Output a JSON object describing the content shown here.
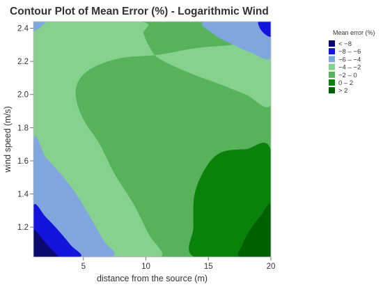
{
  "chart_data": {
    "type": "contour",
    "title": "Contour Plot of Mean Error (%) - Logarithmic Wind",
    "xlabel": "distance from the source (m)",
    "ylabel": "wind speed (m/s)",
    "xlim": [
      1,
      20
    ],
    "ylim": [
      1.02,
      2.44
    ],
    "x_ticks": [
      5,
      10,
      15,
      20
    ],
    "x_tick_labels": [
      "5",
      "10",
      "15",
      "20"
    ],
    "y_ticks": [
      1.2,
      1.4,
      1.6,
      1.8,
      2.0,
      2.2,
      2.4
    ],
    "y_tick_labels": [
      "1.2",
      "1.4",
      "1.6",
      "1.8",
      "2.0",
      "2.2",
      "2.4"
    ],
    "legend": {
      "title": "Mean error (%)",
      "placement": "right",
      "entries": [
        {
          "label": "< −8",
          "color": "#0a0a6e"
        },
        {
          "label": "−8 – −6",
          "color": "#1414dc"
        },
        {
          "label": "−6 – −4",
          "color": "#80a7dd"
        },
        {
          "label": "−4 – −2",
          "color": "#87d18f"
        },
        {
          "label": "−2 – 0",
          "color": "#57b35b"
        },
        {
          "label": "0 – 2",
          "color": "#098209"
        },
        {
          "label": "> 2",
          "color": "#005f00"
        }
      ]
    },
    "regions": [
      {
        "level": "−2 – 0",
        "color": "#57b35b",
        "points": [
          [
            1,
            1.02
          ],
          [
            20,
            1.02
          ],
          [
            20,
            2.44
          ],
          [
            1,
            2.44
          ]
        ]
      },
      {
        "level": "−4 – −2",
        "color": "#87d18f",
        "points": [
          [
            1,
            1.45
          ],
          [
            2,
            1.36
          ],
          [
            3.5,
            1.26
          ],
          [
            5,
            1.16
          ],
          [
            6.5,
            1.05
          ],
          [
            7.2,
            1.02
          ],
          [
            11.2,
            1.02
          ],
          [
            10.2,
            1.16
          ],
          [
            9,
            1.34
          ],
          [
            7.5,
            1.52
          ],
          [
            6.3,
            1.7
          ],
          [
            5,
            1.85
          ],
          [
            4.4,
            1.98
          ],
          [
            4.6,
            2.08
          ],
          [
            5.7,
            2.16
          ],
          [
            8,
            2.22
          ],
          [
            11,
            2.24
          ],
          [
            14,
            2.28
          ],
          [
            17,
            2.3
          ],
          [
            18.6,
            2.33
          ],
          [
            20,
            2.35
          ],
          [
            20,
            1.94
          ],
          [
            18,
            2.0
          ],
          [
            16,
            2.06
          ],
          [
            13.5,
            2.13
          ],
          [
            11,
            2.22
          ],
          [
            10.2,
            2.3
          ],
          [
            9.8,
            2.37
          ],
          [
            9.5,
            2.44
          ],
          [
            1,
            2.44
          ]
        ]
      },
      {
        "level": "−6 – −4",
        "color": "#80a7dd",
        "points": [
          [
            1,
            1.72
          ],
          [
            2,
            1.62
          ],
          [
            3.2,
            1.52
          ],
          [
            4.5,
            1.39
          ],
          [
            5.7,
            1.24
          ],
          [
            6.6,
            1.12
          ],
          [
            7.2,
            1.02
          ],
          [
            1,
            1.02
          ]
        ]
      },
      {
        "level": "−6 – −4",
        "color": "#80a7dd",
        "points": [
          [
            20,
            2.22
          ],
          [
            18.5,
            2.25
          ],
          [
            17,
            2.3
          ],
          [
            15.5,
            2.36
          ],
          [
            14.7,
            2.44
          ],
          [
            20,
            2.44
          ]
        ]
      },
      {
        "level": "−6 – −4",
        "color": "#80a7dd",
        "points": [
          [
            1,
            2.44
          ],
          [
            2,
            2.44
          ],
          [
            1,
            2.38
          ]
        ]
      },
      {
        "level": "−8 – −6",
        "color": "#1414dc",
        "points": [
          [
            1,
            1.33
          ],
          [
            2,
            1.26
          ],
          [
            3,
            1.18
          ],
          [
            4,
            1.09
          ],
          [
            4.7,
            1.02
          ],
          [
            1,
            1.02
          ]
        ]
      },
      {
        "level": "−8 – −6",
        "color": "#1414dc",
        "points": [
          [
            20,
            2.35
          ],
          [
            19.3,
            2.38
          ],
          [
            19,
            2.44
          ],
          [
            20,
            2.44
          ]
        ]
      },
      {
        "level": "< −8",
        "color": "#0a0a6e",
        "points": [
          [
            1,
            1.18
          ],
          [
            1.8,
            1.12
          ],
          [
            2.5,
            1.06
          ],
          [
            2.9,
            1.02
          ],
          [
            1,
            1.02
          ]
        ]
      },
      {
        "level": "0 – 2",
        "color": "#098209",
        "points": [
          [
            20,
            1.02
          ],
          [
            20,
            1.66
          ],
          [
            18,
            1.67
          ],
          [
            16,
            1.65
          ],
          [
            14.8,
            1.56
          ],
          [
            13.9,
            1.4
          ],
          [
            13.8,
            1.2
          ],
          [
            13.9,
            1.02
          ]
        ]
      },
      {
        "level": "> 2",
        "color": "#005f00",
        "points": [
          [
            20,
            1.02
          ],
          [
            20,
            1.33
          ],
          [
            19.2,
            1.27
          ],
          [
            18.3,
            1.18
          ],
          [
            17.7,
            1.09
          ],
          [
            17.5,
            1.02
          ]
        ]
      }
    ]
  }
}
